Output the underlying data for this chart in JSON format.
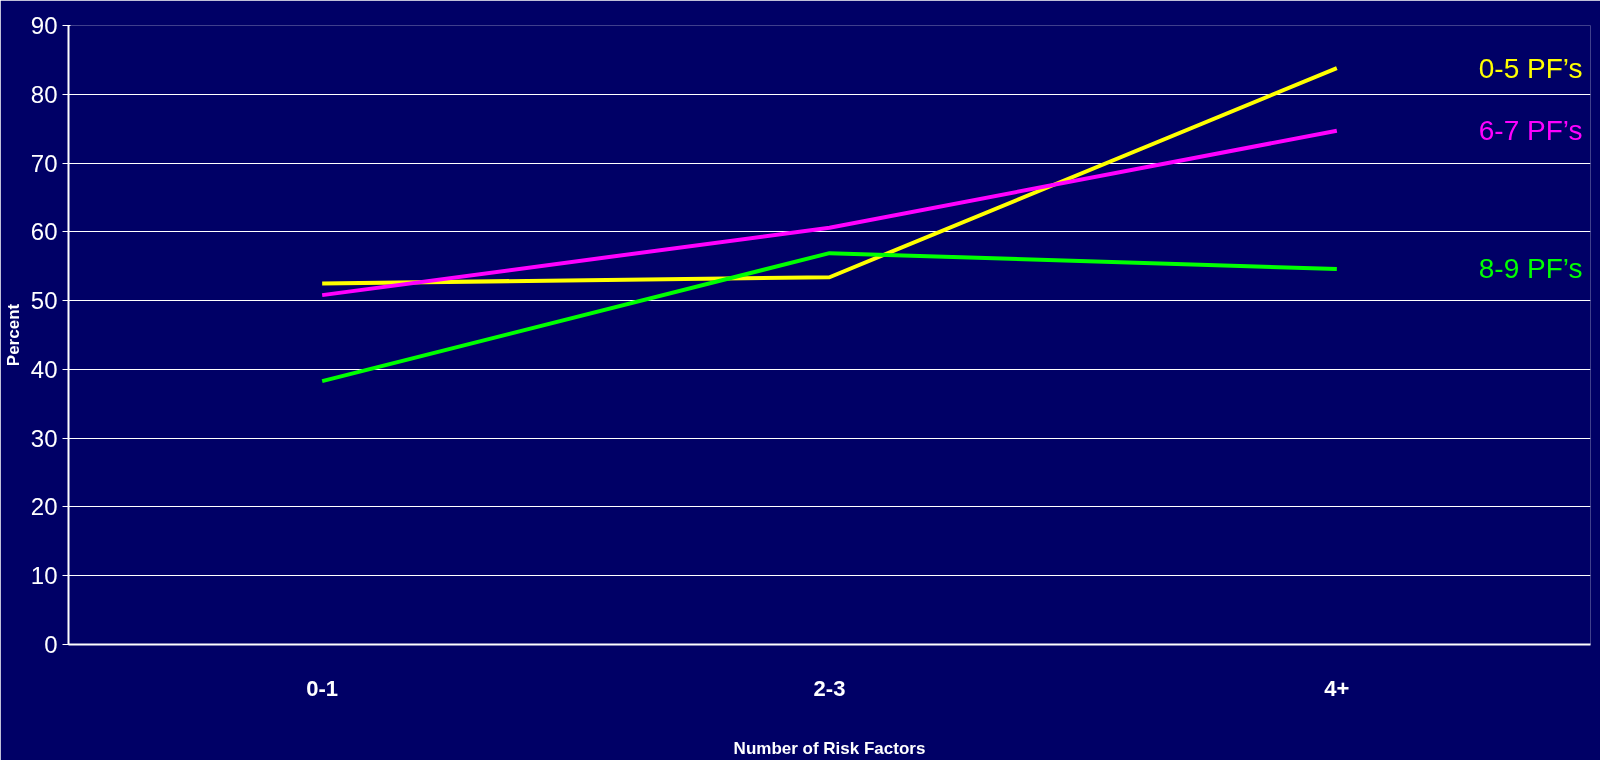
{
  "chart_data": {
    "type": "line",
    "xlabel": "Number of Risk Factors",
    "ylabel": "Percent",
    "categories": [
      "0-1",
      "2-3",
      "4+"
    ],
    "series": [
      {
        "name": "0-5 PF’s",
        "color": "#ffff00",
        "values": [
          52.5,
          53.4,
          83.8
        ]
      },
      {
        "name": "6-7 PF’s",
        "color": "#ff00ff",
        "values": [
          50.8,
          60.6,
          74.7
        ]
      },
      {
        "name": "8-9 PF’s",
        "color": "#00ff00",
        "values": [
          38.3,
          56.9,
          54.6
        ]
      }
    ],
    "ylim": [
      0,
      90
    ],
    "yticks": [
      0,
      10,
      20,
      30,
      40,
      50,
      60,
      70,
      80,
      90
    ],
    "grid": "y",
    "legend": false,
    "marker": "none",
    "line_style": "solid"
  }
}
